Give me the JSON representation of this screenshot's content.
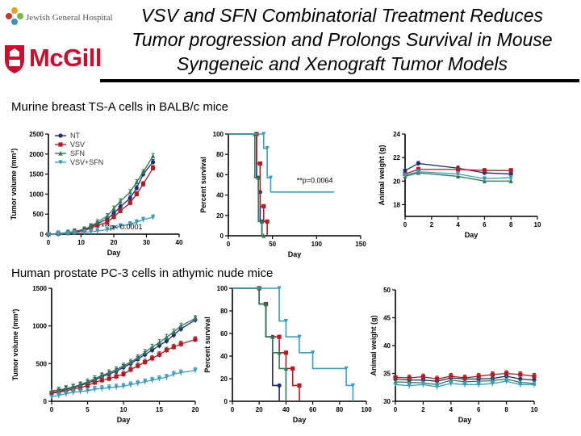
{
  "header": {
    "logo_jgh_text": "Jewish General Hospital",
    "logo_mcgill_text": "McGill",
    "title_lines": [
      "VSV and SFN Combinatorial Treatment Reduces",
      "Tumor progression and Prolongs Survival in Mouse",
      "Syngeneic and Xenograft Tumor Models"
    ]
  },
  "sections": {
    "top_label": "Murine breast TS-A cells in BALB/c mice",
    "bottom_label": "Human prostate PC-3 cells in athymic nude mice"
  },
  "colors": {
    "NT": "#1f2a7a",
    "VSV": "#b01c24",
    "SFN": "#2f7a52",
    "VSV+SFN": "#3a9dbf"
  },
  "chart_data": [
    {
      "id": "tsa_tumor",
      "type": "line",
      "xlabel": "Day",
      "ylabel": "Tumor volume (mm³)",
      "xlim": [
        0,
        40
      ],
      "ylim": [
        0,
        2500
      ],
      "xticks": [
        0,
        10,
        20,
        30,
        40
      ],
      "yticks": [
        0,
        500,
        1000,
        1500,
        2000,
        2500
      ],
      "legend": [
        "NT",
        "VSV",
        "SFN",
        "VSV+SFN"
      ],
      "annotation": "***p< 0.0001",
      "series": [
        {
          "name": "NT",
          "x": [
            0,
            3,
            6,
            8,
            11,
            13,
            15,
            18,
            20,
            22,
            25,
            27,
            29,
            32
          ],
          "y": [
            0,
            15,
            35,
            60,
            110,
            180,
            260,
            380,
            520,
            680,
            900,
            1150,
            1500,
            1800
          ]
        },
        {
          "name": "VSV",
          "x": [
            0,
            3,
            6,
            8,
            11,
            13,
            15,
            18,
            20,
            22,
            25,
            27,
            29,
            32
          ],
          "y": [
            0,
            10,
            30,
            50,
            90,
            150,
            220,
            300,
            430,
            580,
            780,
            1000,
            1250,
            1650
          ]
        },
        {
          "name": "SFN",
          "x": [
            0,
            3,
            6,
            8,
            11,
            13,
            15,
            18,
            20,
            22,
            25,
            27,
            29,
            32
          ],
          "y": [
            0,
            15,
            40,
            70,
            120,
            200,
            300,
            450,
            640,
            820,
            1050,
            1300,
            1550,
            1950
          ]
        },
        {
          "name": "VSV+SFN",
          "x": [
            0,
            3,
            6,
            8,
            11,
            13,
            15,
            18,
            20,
            22,
            25,
            27,
            29,
            32
          ],
          "y": [
            0,
            5,
            20,
            30,
            45,
            60,
            80,
            110,
            150,
            200,
            250,
            300,
            360,
            420
          ]
        }
      ]
    },
    {
      "id": "tsa_survival",
      "type": "line",
      "xlabel": "Day",
      "ylabel": "Percent survival",
      "xlim": [
        0,
        150
      ],
      "ylim": [
        0,
        100
      ],
      "xticks": [
        0,
        50,
        100,
        150
      ],
      "yticks": [
        0,
        20,
        40,
        60,
        80,
        100
      ],
      "annotation": "**p=0.0064",
      "series": [
        {
          "name": "NT",
          "x": [
            0,
            32,
            32,
            34,
            34,
            36,
            36,
            38,
            38
          ],
          "y": [
            100,
            100,
            57,
            57,
            43,
            43,
            14,
            14,
            0
          ]
        },
        {
          "name": "VSV",
          "x": [
            0,
            32,
            32,
            36,
            36,
            40,
            40,
            44,
            44
          ],
          "y": [
            100,
            100,
            71,
            71,
            29,
            29,
            14,
            14,
            0
          ]
        },
        {
          "name": "SFN",
          "x": [
            0,
            30,
            30,
            34,
            34,
            38,
            38,
            40,
            40
          ],
          "y": [
            100,
            100,
            57,
            57,
            14,
            14,
            0,
            0,
            0
          ]
        },
        {
          "name": "VSV+SFN",
          "x": [
            0,
            40,
            40,
            44,
            44,
            48,
            48,
            120
          ],
          "y": [
            100,
            100,
            86,
            86,
            57,
            57,
            43,
            43
          ]
        }
      ]
    },
    {
      "id": "tsa_weight",
      "type": "line",
      "xlabel": "Day",
      "ylabel": "Animal weight (g)",
      "xlim": [
        0,
        10
      ],
      "ylim": [
        17,
        24
      ],
      "xticks": [
        0,
        2,
        4,
        6,
        8,
        10
      ],
      "yticks": [
        18,
        20,
        22,
        24
      ],
      "series": [
        {
          "name": "NT",
          "x": [
            0,
            1,
            4,
            6,
            8
          ],
          "y": [
            20.9,
            21.5,
            21.1,
            20.7,
            20.6
          ]
        },
        {
          "name": "VSV",
          "x": [
            0,
            1,
            4,
            6,
            8
          ],
          "y": [
            20.6,
            21.0,
            21.0,
            20.9,
            20.9
          ]
        },
        {
          "name": "SFN",
          "x": [
            0,
            1,
            4,
            6,
            8
          ],
          "y": [
            20.4,
            20.7,
            20.4,
            20.0,
            20.0
          ]
        },
        {
          "name": "VSV+SFN",
          "x": [
            0,
            1,
            4,
            6,
            8
          ],
          "y": [
            20.5,
            20.8,
            20.6,
            20.2,
            20.3
          ]
        }
      ]
    },
    {
      "id": "pc3_tumor",
      "type": "line",
      "xlabel": "Day",
      "ylabel": "Tumor volume (mm³)",
      "xlim": [
        0,
        20
      ],
      "ylim": [
        0,
        1500
      ],
      "xticks": [
        0,
        5,
        10,
        15,
        20
      ],
      "yticks": [
        0,
        500,
        1000,
        1500
      ],
      "series": [
        {
          "name": "NT",
          "x": [
            0,
            1,
            2,
            3,
            4,
            5,
            6,
            7,
            8,
            9,
            10,
            11,
            12,
            13,
            14,
            15,
            16,
            17,
            18,
            20
          ],
          "y": [
            120,
            130,
            160,
            180,
            210,
            240,
            280,
            330,
            360,
            400,
            450,
            500,
            560,
            620,
            680,
            740,
            800,
            880,
            960,
            1080
          ]
        },
        {
          "name": "VSV",
          "x": [
            0,
            1,
            2,
            3,
            4,
            5,
            6,
            7,
            8,
            9,
            10,
            11,
            12,
            13,
            14,
            15,
            16,
            17,
            18,
            20
          ],
          "y": [
            110,
            120,
            140,
            160,
            180,
            210,
            250,
            280,
            300,
            330,
            360,
            420,
            470,
            520,
            570,
            620,
            680,
            720,
            760,
            820
          ]
        },
        {
          "name": "SFN",
          "x": [
            0,
            1,
            2,
            3,
            4,
            5,
            6,
            7,
            8,
            9,
            10,
            11,
            12,
            13,
            14,
            15,
            16,
            17,
            18,
            20
          ],
          "y": [
            140,
            150,
            170,
            190,
            220,
            260,
            300,
            340,
            380,
            420,
            470,
            520,
            580,
            650,
            720,
            780,
            850,
            920,
            1000,
            1100
          ]
        },
        {
          "name": "VSV+SFN",
          "x": [
            0,
            1,
            2,
            3,
            4,
            5,
            6,
            7,
            8,
            9,
            10,
            11,
            12,
            13,
            14,
            15,
            16,
            17,
            18,
            20
          ],
          "y": [
            60,
            80,
            100,
            120,
            130,
            140,
            160,
            170,
            180,
            190,
            200,
            220,
            240,
            260,
            280,
            300,
            320,
            360,
            380,
            410
          ]
        }
      ]
    },
    {
      "id": "pc3_survival",
      "type": "line",
      "xlabel": "Day",
      "ylabel": "Percent survival",
      "xlim": [
        0,
        100
      ],
      "ylim": [
        0,
        100
      ],
      "xticks": [
        0,
        20,
        40,
        60,
        80,
        100
      ],
      "yticks": [
        0,
        20,
        40,
        60,
        80,
        100
      ],
      "series": [
        {
          "name": "NT",
          "x": [
            0,
            20,
            20,
            25,
            25,
            30,
            30,
            35,
            35
          ],
          "y": [
            100,
            100,
            86,
            86,
            57,
            57,
            14,
            14,
            0
          ]
        },
        {
          "name": "VSV",
          "x": [
            0,
            20,
            20,
            25,
            25,
            35,
            35,
            40,
            40,
            45,
            45,
            50,
            50
          ],
          "y": [
            100,
            100,
            86,
            86,
            57,
            57,
            43,
            43,
            29,
            29,
            14,
            14,
            0
          ]
        },
        {
          "name": "SFN",
          "x": [
            0,
            20,
            20,
            25,
            25,
            30,
            30,
            35,
            35,
            40,
            40
          ],
          "y": [
            100,
            100,
            86,
            86,
            57,
            57,
            43,
            43,
            29,
            29,
            0
          ]
        },
        {
          "name": "VSV+SFN",
          "x": [
            0,
            35,
            35,
            40,
            40,
            50,
            50,
            60,
            60,
            85,
            85,
            90,
            90
          ],
          "y": [
            100,
            100,
            71,
            71,
            57,
            57,
            43,
            43,
            29,
            29,
            14,
            14,
            0
          ]
        }
      ]
    },
    {
      "id": "pc3_weight",
      "type": "line",
      "xlabel": "Day",
      "ylabel": "Animal weight (g)",
      "xlim": [
        0,
        10
      ],
      "ylim": [
        30,
        50
      ],
      "xticks": [
        0,
        2,
        4,
        6,
        8,
        10
      ],
      "yticks": [
        30,
        35,
        40,
        45,
        50
      ],
      "series": [
        {
          "name": "NT",
          "x": [
            0,
            1,
            2,
            3,
            4,
            5,
            6,
            7,
            8,
            9,
            10
          ],
          "y": [
            34.0,
            33.8,
            33.8,
            33.6,
            34.2,
            34.0,
            34.0,
            34.1,
            34.5,
            34.0,
            33.8
          ]
        },
        {
          "name": "VSV",
          "x": [
            0,
            1,
            2,
            3,
            4,
            5,
            6,
            7,
            8,
            9,
            10
          ],
          "y": [
            34.3,
            34.2,
            34.4,
            34.0,
            34.5,
            34.2,
            34.5,
            34.8,
            35.0,
            34.8,
            34.5
          ]
        },
        {
          "name": "SFN",
          "x": [
            0,
            1,
            2,
            3,
            4,
            5,
            6,
            7,
            8,
            9,
            10
          ],
          "y": [
            33.5,
            33.4,
            33.3,
            33.0,
            33.8,
            33.5,
            33.6,
            33.7,
            34.0,
            33.4,
            33.2
          ]
        },
        {
          "name": "VSV+SFN",
          "x": [
            0,
            1,
            2,
            3,
            4,
            5,
            6,
            7,
            8,
            9,
            10
          ],
          "y": [
            33.0,
            32.8,
            33.0,
            32.6,
            33.2,
            33.0,
            33.0,
            33.2,
            33.6,
            33.0,
            33.0
          ]
        }
      ]
    }
  ]
}
